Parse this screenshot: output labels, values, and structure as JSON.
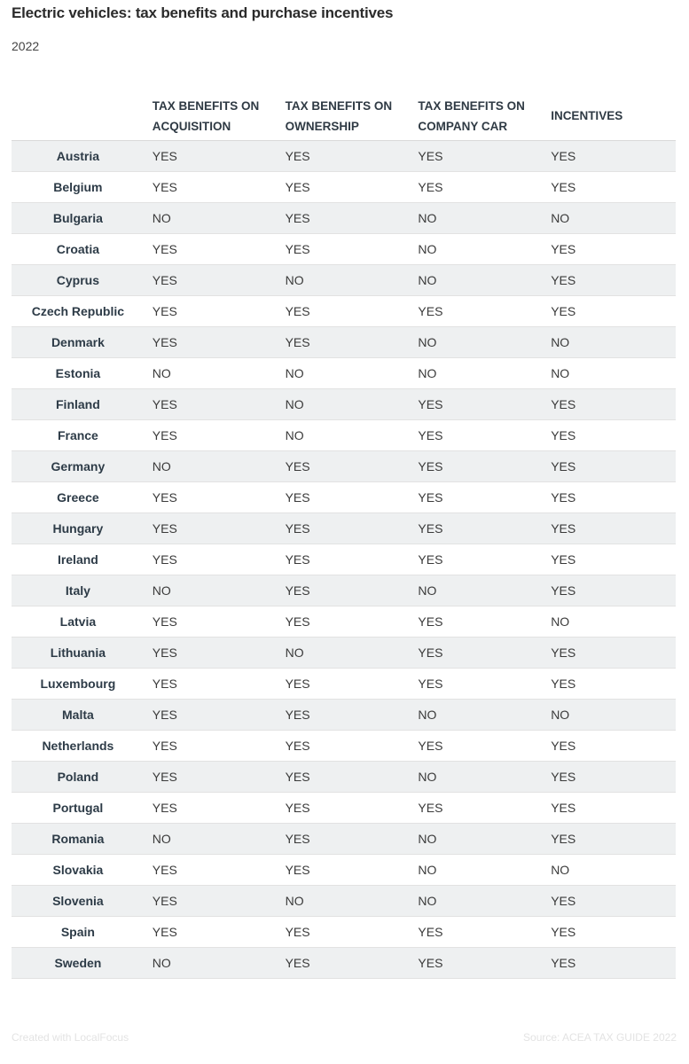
{
  "title": "Electric vehicles: tax benefits and purchase incentives",
  "subtitle": "2022",
  "footer": {
    "credit": "Created with LocalFocus",
    "source": "Source: ACEA TAX GUIDE 2022"
  },
  "chart_data": {
    "type": "table",
    "columns": [
      "",
      "TAX BENEFITS ON ACQUISITION",
      "TAX BENEFITS ON OWNERSHIP",
      "TAX BENEFITS ON COMPANY CAR",
      "INCENTIVES"
    ],
    "rows": [
      [
        "Austria",
        "YES",
        "YES",
        "YES",
        "YES"
      ],
      [
        "Belgium",
        "YES",
        "YES",
        "YES",
        "YES"
      ],
      [
        "Bulgaria",
        "NO",
        "YES",
        "NO",
        "NO"
      ],
      [
        "Croatia",
        "YES",
        "YES",
        "NO",
        "YES"
      ],
      [
        "Cyprus",
        "YES",
        "NO",
        "NO",
        "YES"
      ],
      [
        "Czech Republic",
        "YES",
        "YES",
        "YES",
        "YES"
      ],
      [
        "Denmark",
        "YES",
        "YES",
        "NO",
        "NO"
      ],
      [
        "Estonia",
        "NO",
        "NO",
        "NO",
        "NO"
      ],
      [
        "Finland",
        "YES",
        "NO",
        "YES",
        "YES"
      ],
      [
        "France",
        "YES",
        "NO",
        "YES",
        "YES"
      ],
      [
        "Germany",
        "NO",
        "YES",
        "YES",
        "YES"
      ],
      [
        "Greece",
        "YES",
        "YES",
        "YES",
        "YES"
      ],
      [
        "Hungary",
        "YES",
        "YES",
        "YES",
        "YES"
      ],
      [
        "Ireland",
        "YES",
        "YES",
        "YES",
        "YES"
      ],
      [
        "Italy",
        "NO",
        "YES",
        "NO",
        "YES"
      ],
      [
        "Latvia",
        "YES",
        "YES",
        "YES",
        "NO"
      ],
      [
        "Lithuania",
        "YES",
        "NO",
        "YES",
        "YES"
      ],
      [
        "Luxembourg",
        "YES",
        "YES",
        "YES",
        "YES"
      ],
      [
        "Malta",
        "YES",
        "YES",
        "NO",
        "NO"
      ],
      [
        "Netherlands",
        "YES",
        "YES",
        "YES",
        "YES"
      ],
      [
        "Poland",
        "YES",
        "YES",
        "NO",
        "YES"
      ],
      [
        "Portugal",
        "YES",
        "YES",
        "YES",
        "YES"
      ],
      [
        "Romania",
        "NO",
        "YES",
        "NO",
        "YES"
      ],
      [
        "Slovakia",
        "YES",
        "YES",
        "NO",
        "NO"
      ],
      [
        "Slovenia",
        "YES",
        "NO",
        "NO",
        "YES"
      ],
      [
        "Spain",
        "YES",
        "YES",
        "YES",
        "YES"
      ],
      [
        "Sweden",
        "NO",
        "YES",
        "YES",
        "YES"
      ]
    ]
  }
}
